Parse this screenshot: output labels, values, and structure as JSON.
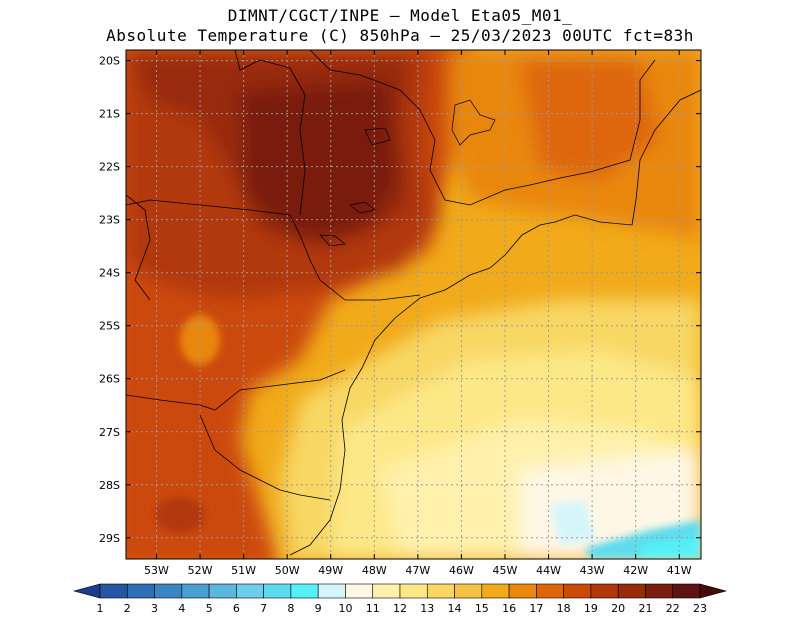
{
  "header": {
    "line1": "DIMNT/CGCT/INPE –  Model Eta05_M01_",
    "line2": "Absolute Temperature (C) 850hPa –  25/03/2023 00UTC fct=83h"
  },
  "map": {
    "lat_ticks": [
      "20S",
      "21S",
      "22S",
      "23S",
      "24S",
      "25S",
      "26S",
      "27S",
      "28S",
      "29S"
    ],
    "lon_ticks": [
      "53W",
      "52W",
      "51W",
      "50W",
      "49W",
      "48W",
      "47W",
      "46W",
      "45W",
      "44W",
      "43W",
      "42W",
      "41W"
    ],
    "lon_range": [
      -53.7,
      -40.5
    ],
    "lat_range": [
      -29.4,
      -19.8
    ],
    "grid": true
  },
  "colorbar": {
    "labels": [
      "1",
      "2",
      "3",
      "4",
      "5",
      "6",
      "7",
      "8",
      "9",
      "10",
      "11",
      "12",
      "13",
      "14",
      "15",
      "16",
      "17",
      "18",
      "19",
      "20",
      "21",
      "22",
      "23"
    ],
    "colors": [
      "#1e3c8c",
      "#2356a3",
      "#2d6eb4",
      "#3a86c4",
      "#4a9fd2",
      "#5cb7df",
      "#6ecde9",
      "#5ddbee",
      "#55f0f8",
      "#d6f5fb",
      "#fff7e6",
      "#fff1ac",
      "#fde887",
      "#f8d764",
      "#f4c244",
      "#f1aa1a",
      "#e9870f",
      "#de660a",
      "#cc4a07",
      "#b2370b",
      "#982b0a",
      "#7a1d0e",
      "#5e1212",
      "#450c0c"
    ]
  }
}
